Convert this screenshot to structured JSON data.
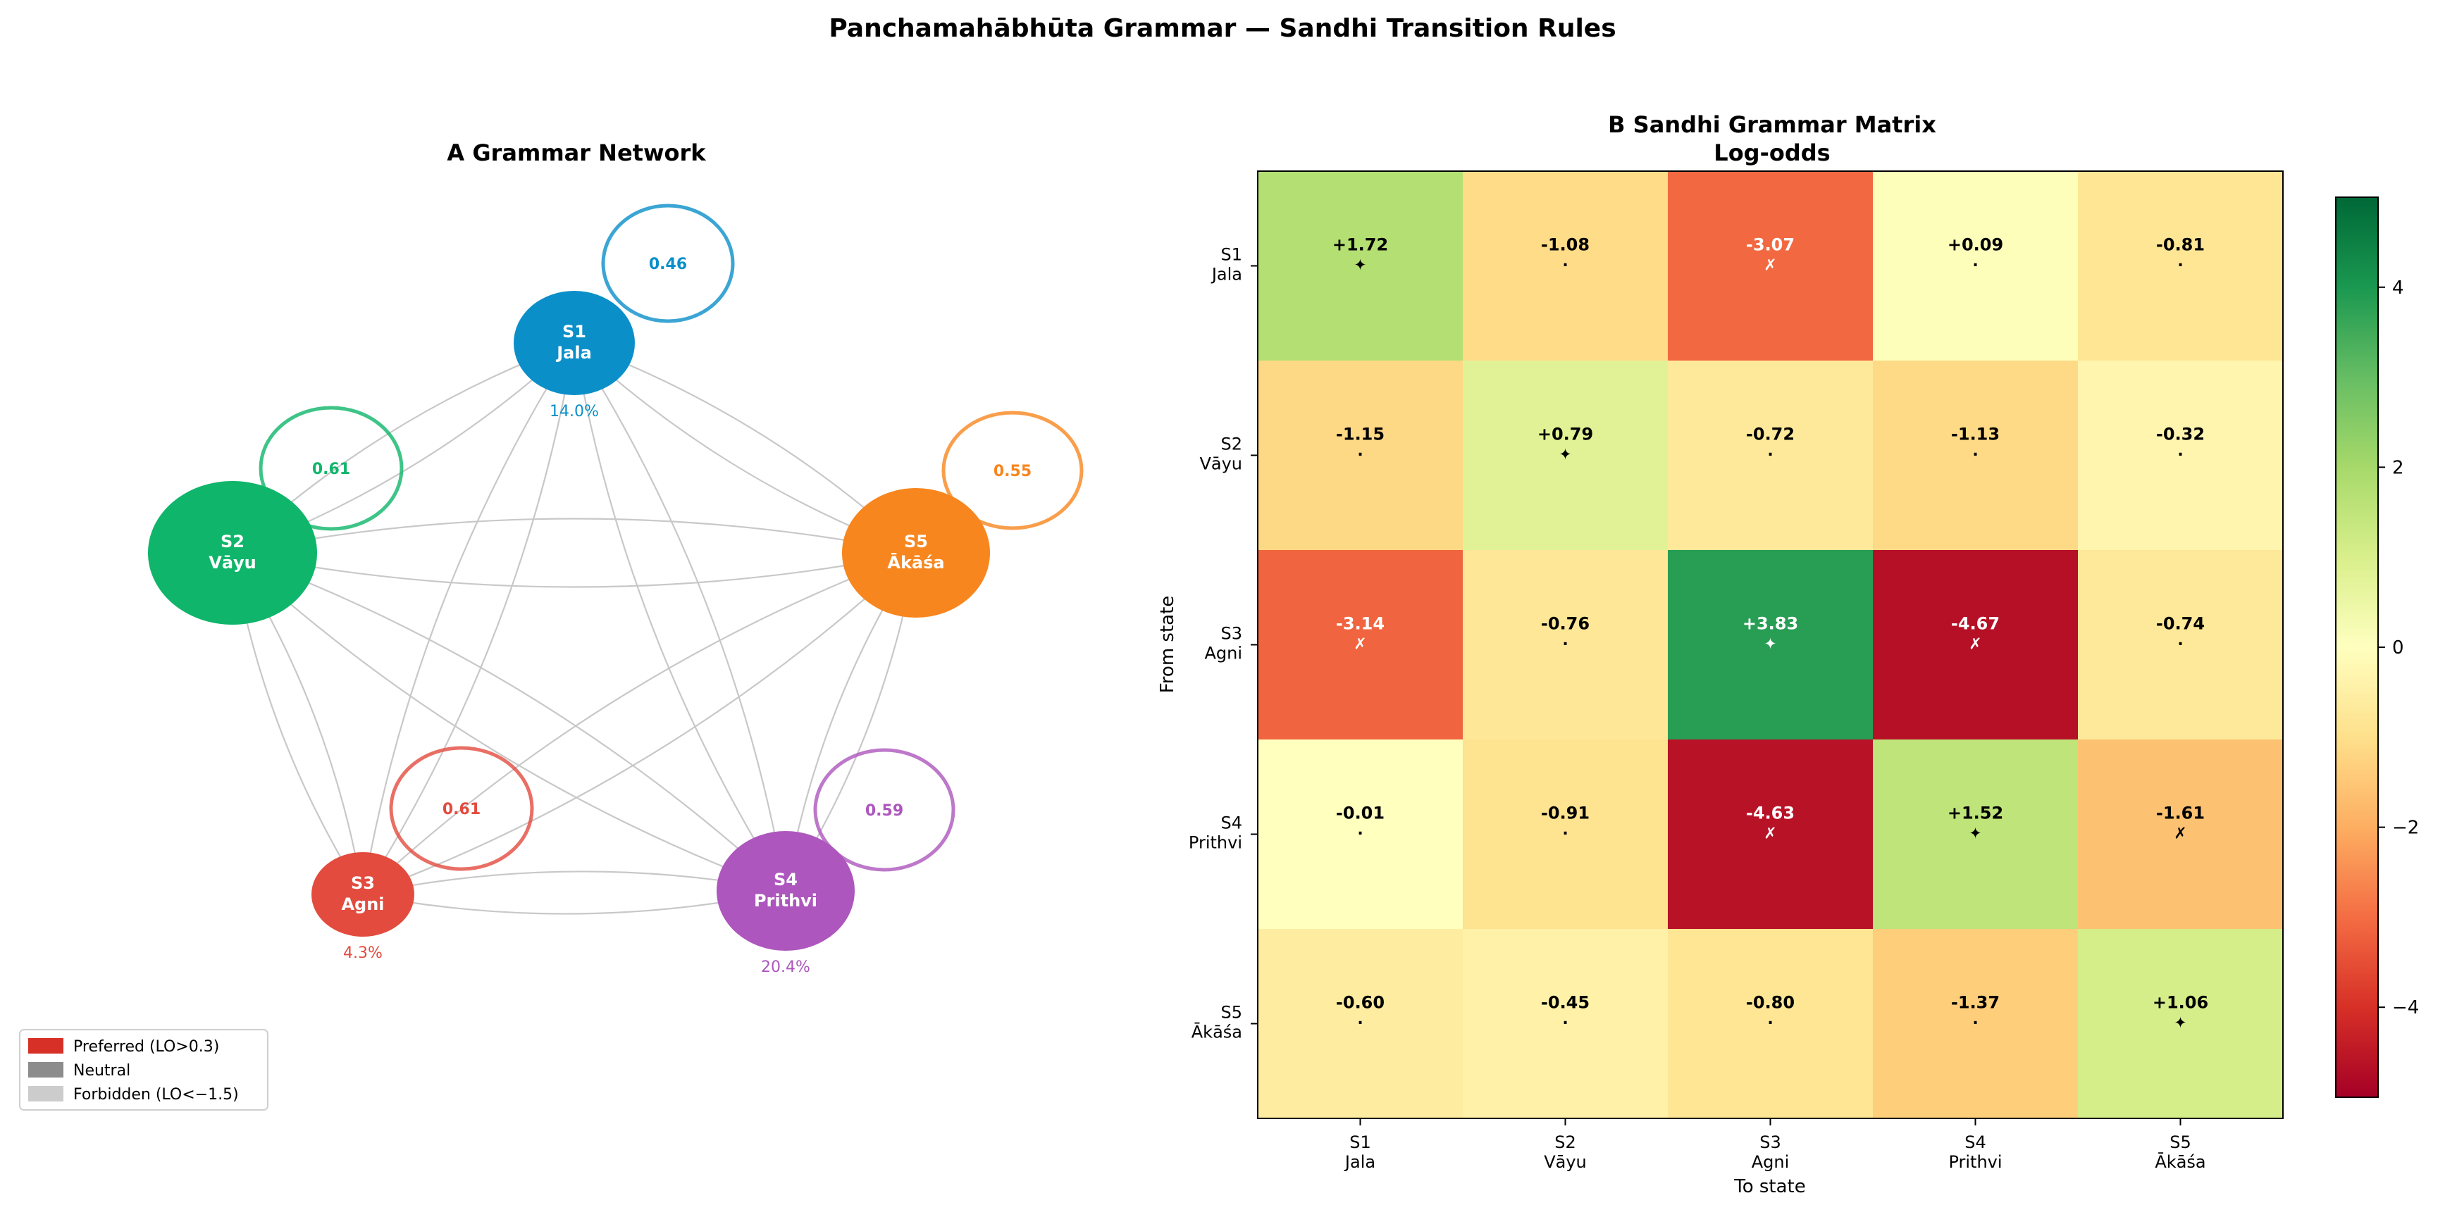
{
  "figure": {
    "suptitle": "Panchamahābhūta Grammar — Sandhi Transition Rules"
  },
  "network": {
    "title": "A   Grammar Network",
    "nodes": [
      {
        "id": "S1",
        "name": "Jala",
        "color": "#0a8fc9",
        "pct": "14.0%",
        "self_lo": "0.46"
      },
      {
        "id": "S2",
        "name": "Vāyu",
        "color": "#0fb56a",
        "pct": "",
        "self_lo": "0.61"
      },
      {
        "id": "S3",
        "name": "Agni",
        "color": "#e24b3e",
        "pct": "4.3%",
        "self_lo": "0.61"
      },
      {
        "id": "S4",
        "name": "Prithvi",
        "color": "#ad56bd",
        "pct": "20.4%",
        "self_lo": "0.59"
      },
      {
        "id": "S5",
        "name": "Ākāśa",
        "color": "#f7861e",
        "pct": "",
        "self_lo": "0.55"
      }
    ],
    "legend": [
      {
        "label": "Preferred (LO>0.3)",
        "color": "#d73027"
      },
      {
        "label": "Neutral",
        "color": "#8c8c8c"
      },
      {
        "label": "Forbidden (LO<−1.5)",
        "color": "#cccccc"
      }
    ]
  },
  "chart_data": {
    "type": "heatmap",
    "title": "B   Sandhi Grammar Matrix",
    "subtitle": "Log-odds",
    "xlabel": "To state",
    "ylabel": "From state",
    "rows": [
      {
        "id": "S1",
        "name": "Jala"
      },
      {
        "id": "S2",
        "name": "Vāyu"
      },
      {
        "id": "S3",
        "name": "Agni"
      },
      {
        "id": "S4",
        "name": "Prithvi"
      },
      {
        "id": "S5",
        "name": "Ākāśa"
      }
    ],
    "cols": [
      {
        "id": "S1",
        "name": "Jala"
      },
      {
        "id": "S2",
        "name": "Vāyu"
      },
      {
        "id": "S3",
        "name": "Agni"
      },
      {
        "id": "S4",
        "name": "Prithvi"
      },
      {
        "id": "S5",
        "name": "Ākāśa"
      }
    ],
    "values": [
      [
        1.72,
        -1.08,
        -3.07,
        0.09,
        -0.81
      ],
      [
        -1.15,
        0.79,
        -0.72,
        -1.13,
        -0.32
      ],
      [
        -3.14,
        -0.76,
        3.83,
        -4.67,
        -0.74
      ],
      [
        -0.01,
        -0.91,
        -4.63,
        1.52,
        -1.61
      ],
      [
        -0.6,
        -0.45,
        -0.8,
        -1.37,
        1.06
      ]
    ],
    "labels": [
      [
        "+1.72",
        "-1.08",
        "-3.07",
        "+0.09",
        "-0.81"
      ],
      [
        "-1.15",
        "+0.79",
        "-0.72",
        "-1.13",
        "-0.32"
      ],
      [
        "-3.14",
        "-0.76",
        "+3.83",
        "-4.67",
        "-0.74"
      ],
      [
        "-0.01",
        "-0.91",
        "-4.63",
        "+1.52",
        "-1.61"
      ],
      [
        "-0.60",
        "-0.45",
        "-0.80",
        "-1.37",
        "+1.06"
      ]
    ],
    "markers": [
      [
        "✦",
        "·",
        "✗",
        "·",
        "·"
      ],
      [
        "·",
        "✦",
        "·",
        "·",
        "·"
      ],
      [
        "✗",
        "·",
        "✦",
        "✗",
        "·"
      ],
      [
        "·",
        "·",
        "✗",
        "✦",
        "✗"
      ],
      [
        "·",
        "·",
        "·",
        "·",
        "✦"
      ]
    ],
    "colorbar": {
      "range": [
        -5,
        5
      ],
      "ticks": [
        -4,
        -2,
        0,
        2,
        4
      ],
      "tick_labels": [
        "−4",
        "−2",
        "0",
        "2",
        "4"
      ]
    }
  }
}
